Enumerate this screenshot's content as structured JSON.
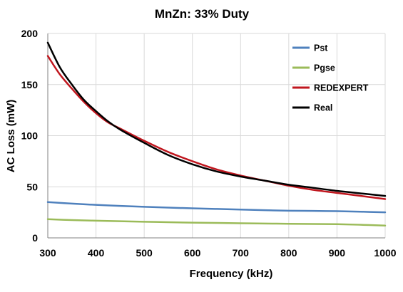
{
  "chart_data": {
    "type": "line",
    "title": "MnZn: 33% Duty",
    "xlabel": "Frequency (kHz)",
    "ylabel": "AC Loss (mW)",
    "xlim": [
      300,
      1000
    ],
    "ylim": [
      0,
      200
    ],
    "xticks": [
      300,
      400,
      500,
      600,
      700,
      800,
      900,
      1000
    ],
    "yticks": [
      0,
      50,
      100,
      150,
      200
    ],
    "grid": true,
    "legend_position": "top-right",
    "series": [
      {
        "name": "Pst",
        "color": "#4f81bd",
        "x": [
          300,
          350,
          400,
          450,
          500,
          550,
          600,
          650,
          700,
          750,
          800,
          850,
          900,
          950,
          1000
        ],
        "y": [
          35,
          33.5,
          32.3,
          31.3,
          30.4,
          29.6,
          28.9,
          28.3,
          27.7,
          27.1,
          26.6,
          26.4,
          26.1,
          25.6,
          25
        ]
      },
      {
        "name": "Pgse",
        "color": "#9bbb59",
        "x": [
          300,
          350,
          400,
          450,
          500,
          550,
          600,
          650,
          700,
          750,
          800,
          850,
          900,
          950,
          1000
        ],
        "y": [
          18.3,
          17.4,
          16.8,
          16.3,
          15.8,
          15.3,
          14.9,
          14.6,
          14.3,
          14.0,
          13.8,
          13.6,
          13.4,
          12.8,
          12.0
        ]
      },
      {
        "name": "REDEXPERT",
        "color": "#c0161e",
        "x": [
          300,
          325,
          350,
          375,
          400,
          425,
          450,
          500,
          550,
          600,
          650,
          700,
          750,
          800,
          850,
          900,
          950,
          1000
        ],
        "y": [
          178,
          160,
          146,
          133,
          122,
          113,
          107,
          95,
          84,
          75,
          67,
          61,
          56,
          51,
          47,
          44,
          41,
          38
        ]
      },
      {
        "name": "Real",
        "color": "#000000",
        "x": [
          300,
          325,
          350,
          375,
          400,
          425,
          450,
          500,
          550,
          600,
          650,
          700,
          750,
          800,
          850,
          900,
          950,
          1000
        ],
        "y": [
          191,
          167,
          150,
          135,
          124,
          114,
          106,
          93,
          81,
          72,
          65,
          60,
          56,
          52,
          49,
          46,
          43.5,
          41
        ]
      }
    ]
  }
}
